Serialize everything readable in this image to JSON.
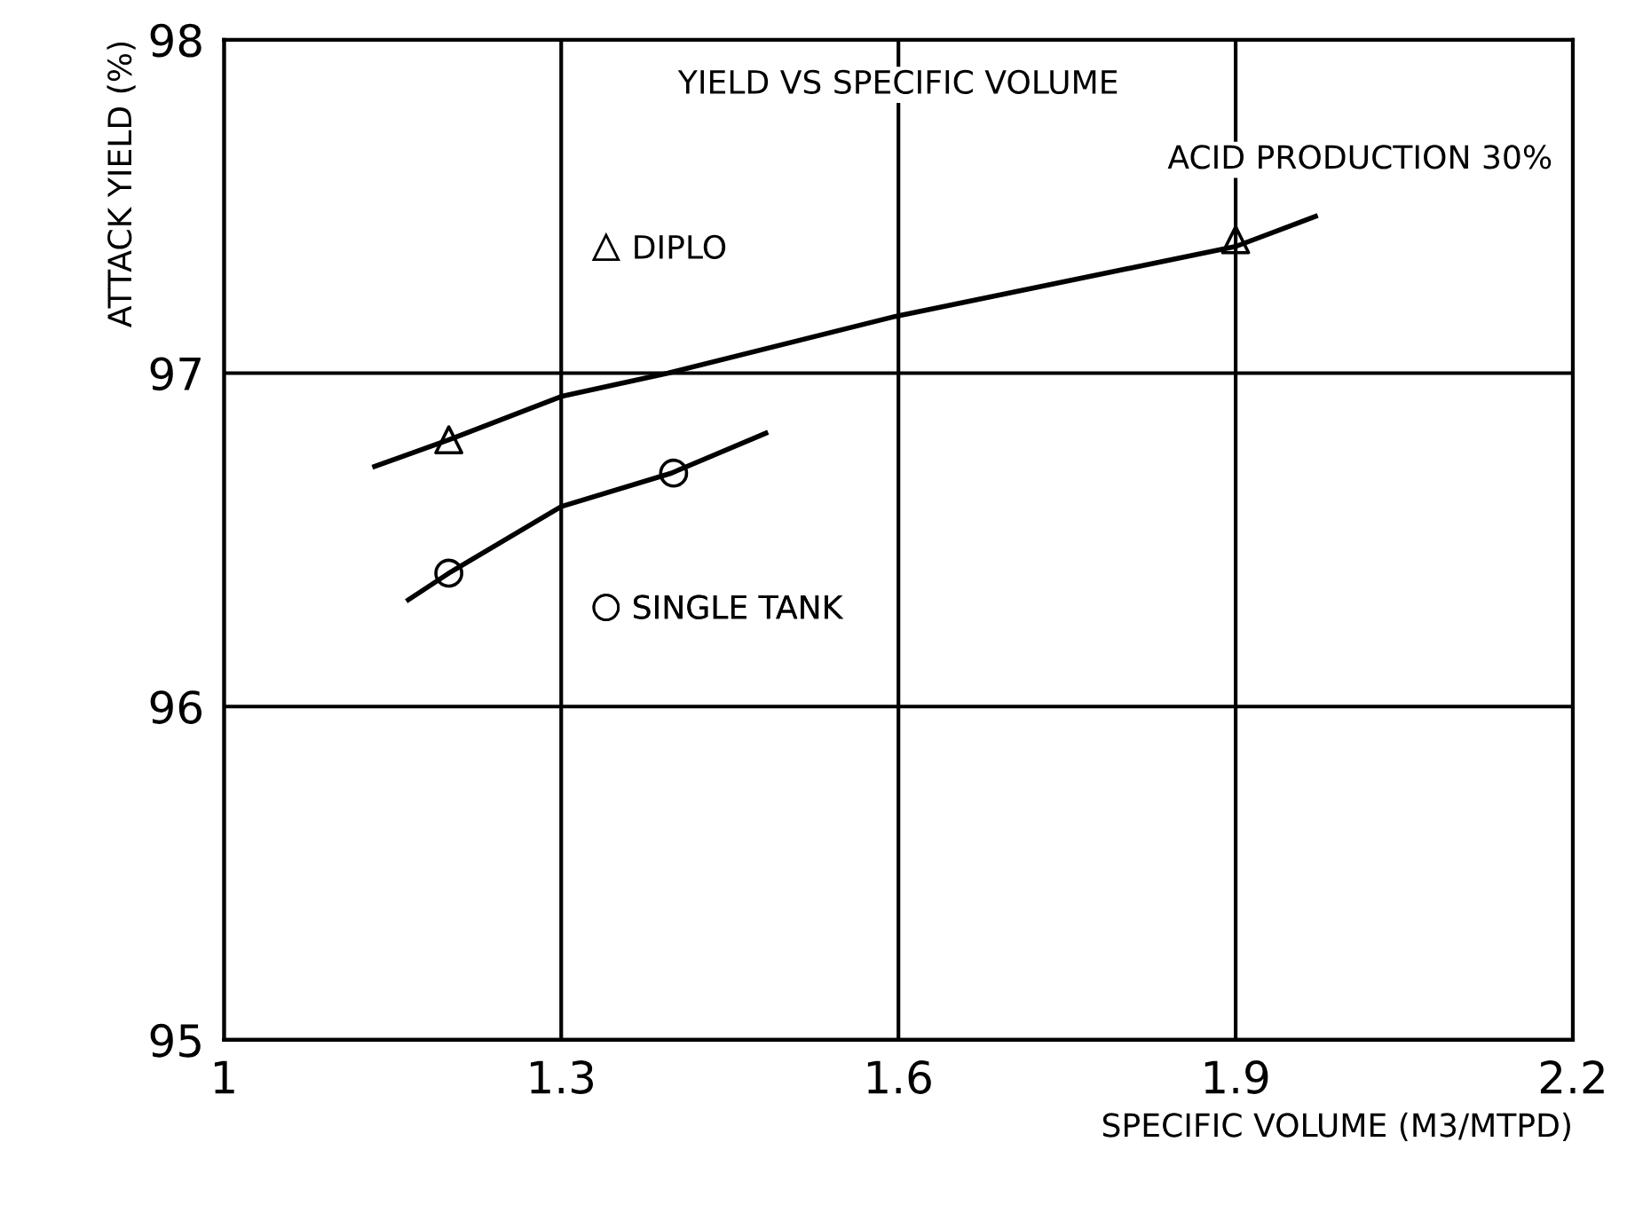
{
  "chart_data": {
    "type": "scatter",
    "title": "YIELD VS SPECIFIC VOLUME",
    "subtitle": "ACID PRODUCTION 30%",
    "xlabel": "SPECIFIC VOLUME (M3/MTPD)",
    "ylabel": "ATTACK YIELD (%)",
    "series": [
      {
        "name": "DIPLO",
        "marker": "triangle",
        "color": "#000000",
        "x": [
          1.2,
          1.9
        ],
        "values": [
          96.8,
          97.4
        ]
      },
      {
        "name": "SINGLE TANK",
        "marker": "circle",
        "color": "#000000",
        "x": [
          1.2,
          1.4
        ],
        "values": [
          96.4,
          96.7
        ]
      },
      {
        "type": "line",
        "color": "#000000",
        "x": [
          1.134,
          1.2,
          1.3,
          1.395,
          1.597,
          1.9,
          1.971
        ],
        "values": [
          96.72,
          96.8,
          96.93,
          97.0,
          97.17,
          97.38,
          97.47
        ]
      },
      {
        "type": "line",
        "color": "#000000",
        "x": [
          1.164,
          1.2,
          1.3,
          1.398,
          1.482
        ],
        "values": [
          96.32,
          96.4,
          96.6,
          96.7,
          96.82
        ]
      }
    ],
    "xlim": [
      1,
      2.2
    ],
    "xticks": [
      1,
      1.3,
      1.6,
      1.9,
      2.2
    ],
    "ylim": [
      95,
      98
    ],
    "yticks": [
      95,
      96,
      97,
      98
    ],
    "grid": true,
    "legend": "left"
  }
}
